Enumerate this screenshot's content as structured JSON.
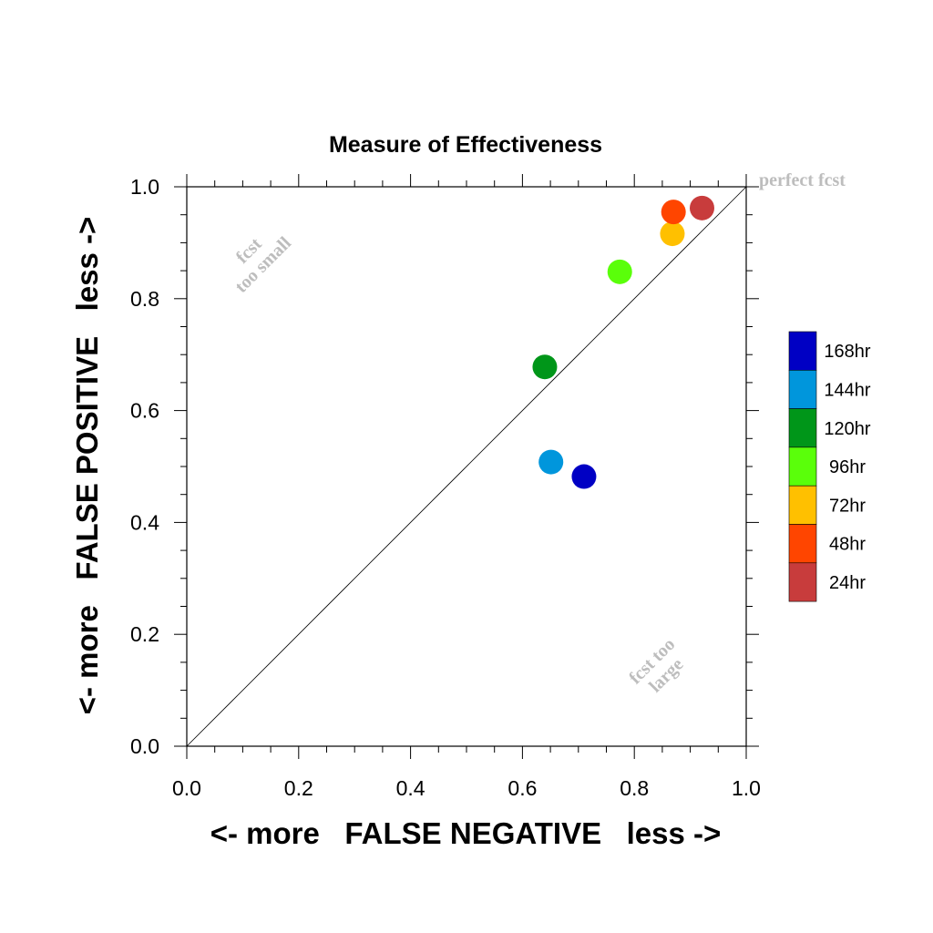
{
  "chart_data": {
    "type": "scatter",
    "title": "Measure of Effectiveness",
    "xlabel": "<- more   FALSE NEGATIVE   less ->",
    "ylabel": "<- more   FALSE POSITIVE   less ->",
    "xlim": [
      0.0,
      1.0
    ],
    "ylim": [
      0.0,
      1.0
    ],
    "x_ticks": [
      "0.0",
      "0.2",
      "0.4",
      "0.6",
      "0.8",
      "1.0"
    ],
    "y_ticks": [
      "0.0",
      "0.2",
      "0.4",
      "0.6",
      "0.8",
      "1.0"
    ],
    "grid": false,
    "diagonal_reference_line": true,
    "legend_position": "right",
    "points": [
      {
        "name": "168hr",
        "x": 0.71,
        "y": 0.482,
        "color": "#0000c4"
      },
      {
        "name": "144hr",
        "x": 0.651,
        "y": 0.508,
        "color": "#0096dc"
      },
      {
        "name": "120hr",
        "x": 0.64,
        "y": 0.678,
        "color": "#009619"
      },
      {
        "name": "96hr",
        "x": 0.774,
        "y": 0.848,
        "color": "#5aff0a"
      },
      {
        "name": "72hr",
        "x": 0.868,
        "y": 0.916,
        "color": "#ffc000"
      },
      {
        "name": "48hr",
        "x": 0.87,
        "y": 0.955,
        "color": "#ff4500"
      },
      {
        "name": "24hr",
        "x": 0.921,
        "y": 0.962,
        "color": "#c83c3c"
      }
    ],
    "legend": [
      "168hr",
      "144hr",
      "120hr",
      "96hr",
      "72hr",
      "48hr",
      "24hr"
    ],
    "annotations": {
      "perfect": "perfect fcst",
      "too_small_1": "fcst",
      "too_small_2": "too small",
      "too_large_1": "fcst too",
      "too_large_2": "large"
    }
  }
}
